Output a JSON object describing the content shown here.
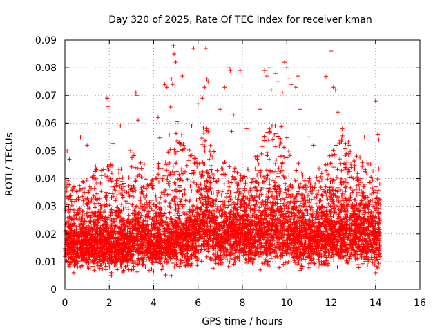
{
  "chart_data": {
    "type": "scatter",
    "title": "Day 320 of 2025, Rate Of TEC Index for receiver kman",
    "xlabel": "GPS time / hours",
    "ylabel": "ROTI / TECUs",
    "xlim": [
      0,
      16
    ],
    "ylim": [
      0,
      0.09
    ],
    "x_ticks": [
      0,
      2,
      4,
      6,
      8,
      10,
      12,
      14,
      16
    ],
    "x_tick_labels": [
      "0",
      "2",
      "4",
      "6",
      "8",
      "10",
      "12",
      "14",
      "16"
    ],
    "y_ticks": [
      0,
      0.01,
      0.02,
      0.03,
      0.04,
      0.05,
      0.06,
      0.07,
      0.08,
      0.09
    ],
    "y_tick_labels": [
      "0",
      "0.01",
      "0.02",
      "0.03",
      "0.04",
      "0.05",
      "0.06",
      "0.07",
      "0.08",
      "0.09"
    ],
    "grid": true,
    "marker": "plus",
    "series_color": "#ff0000",
    "data_range_hours": [
      0,
      14.2
    ],
    "envelope": {
      "x": [
        0,
        0.5,
        1,
        1.5,
        2,
        2.5,
        3,
        3.5,
        4,
        4.5,
        5,
        5.5,
        6,
        6.3,
        6.6,
        7,
        7.5,
        8,
        8.5,
        9,
        9.5,
        10,
        10.5,
        11,
        11.5,
        12,
        12.5,
        13,
        13.5,
        14,
        14.2
      ],
      "median": [
        0.018,
        0.016,
        0.016,
        0.017,
        0.016,
        0.016,
        0.017,
        0.018,
        0.016,
        0.017,
        0.018,
        0.018,
        0.02,
        0.024,
        0.021,
        0.019,
        0.019,
        0.02,
        0.019,
        0.02,
        0.021,
        0.02,
        0.019,
        0.018,
        0.018,
        0.02,
        0.021,
        0.021,
        0.02,
        0.019,
        0.019
      ],
      "upper": [
        0.04,
        0.035,
        0.04,
        0.045,
        0.045,
        0.042,
        0.05,
        0.045,
        0.04,
        0.05,
        0.06,
        0.05,
        0.045,
        0.06,
        0.05,
        0.045,
        0.045,
        0.04,
        0.045,
        0.055,
        0.06,
        0.055,
        0.045,
        0.04,
        0.04,
        0.05,
        0.055,
        0.05,
        0.045,
        0.045,
        0.04
      ]
    },
    "outliers": [
      {
        "x": 0.1,
        "y": 0.05
      },
      {
        "x": 0.2,
        "y": 0.047
      },
      {
        "x": 0.7,
        "y": 0.055
      },
      {
        "x": 1.0,
        "y": 0.052
      },
      {
        "x": 1.9,
        "y": 0.069
      },
      {
        "x": 1.95,
        "y": 0.066
      },
      {
        "x": 2.5,
        "y": 0.059
      },
      {
        "x": 3.2,
        "y": 0.071
      },
      {
        "x": 3.25,
        "y": 0.07
      },
      {
        "x": 3.3,
        "y": 0.061
      },
      {
        "x": 4.2,
        "y": 0.062
      },
      {
        "x": 4.5,
        "y": 0.074
      },
      {
        "x": 4.6,
        "y": 0.073
      },
      {
        "x": 4.8,
        "y": 0.076
      },
      {
        "x": 4.85,
        "y": 0.074
      },
      {
        "x": 4.9,
        "y": 0.088
      },
      {
        "x": 4.92,
        "y": 0.085
      },
      {
        "x": 5.0,
        "y": 0.082
      },
      {
        "x": 5.3,
        "y": 0.077
      },
      {
        "x": 5.8,
        "y": 0.087
      },
      {
        "x": 6.0,
        "y": 0.067
      },
      {
        "x": 6.2,
        "y": 0.069
      },
      {
        "x": 6.3,
        "y": 0.073
      },
      {
        "x": 6.35,
        "y": 0.087
      },
      {
        "x": 6.4,
        "y": 0.076
      },
      {
        "x": 6.45,
        "y": 0.075
      },
      {
        "x": 6.4,
        "y": 0.058
      },
      {
        "x": 7.0,
        "y": 0.065
      },
      {
        "x": 7.2,
        "y": 0.073
      },
      {
        "x": 7.4,
        "y": 0.08
      },
      {
        "x": 7.45,
        "y": 0.079
      },
      {
        "x": 7.6,
        "y": 0.063
      },
      {
        "x": 7.9,
        "y": 0.079
      },
      {
        "x": 8.2,
        "y": 0.058
      },
      {
        "x": 8.8,
        "y": 0.065
      },
      {
        "x": 9.0,
        "y": 0.079
      },
      {
        "x": 9.1,
        "y": 0.077
      },
      {
        "x": 9.2,
        "y": 0.08
      },
      {
        "x": 9.3,
        "y": 0.072
      },
      {
        "x": 9.5,
        "y": 0.078
      },
      {
        "x": 9.6,
        "y": 0.075
      },
      {
        "x": 9.8,
        "y": 0.071
      },
      {
        "x": 9.9,
        "y": 0.082
      },
      {
        "x": 10.0,
        "y": 0.08
      },
      {
        "x": 10.1,
        "y": 0.076
      },
      {
        "x": 10.2,
        "y": 0.074
      },
      {
        "x": 10.4,
        "y": 0.073
      },
      {
        "x": 10.5,
        "y": 0.077
      },
      {
        "x": 10.6,
        "y": 0.065
      },
      {
        "x": 11.0,
        "y": 0.055
      },
      {
        "x": 11.2,
        "y": 0.052
      },
      {
        "x": 12.0,
        "y": 0.086
      },
      {
        "x": 12.1,
        "y": 0.073
      },
      {
        "x": 12.2,
        "y": 0.072
      },
      {
        "x": 12.3,
        "y": 0.064
      },
      {
        "x": 12.5,
        "y": 0.058
      },
      {
        "x": 12.8,
        "y": 0.052
      },
      {
        "x": 13.5,
        "y": 0.055
      },
      {
        "x": 14.0,
        "y": 0.068
      },
      {
        "x": 14.1,
        "y": 0.056
      },
      {
        "x": 14.15,
        "y": 0.054
      },
      {
        "x": 4.8,
        "y": 0.005
      },
      {
        "x": 0.4,
        "y": 0.006
      },
      {
        "x": 2.1,
        "y": 0.006
      },
      {
        "x": 3.0,
        "y": 0.007
      },
      {
        "x": 14.0,
        "y": 0.006
      }
    ],
    "generated_points": 6500,
    "seed": 320
  }
}
